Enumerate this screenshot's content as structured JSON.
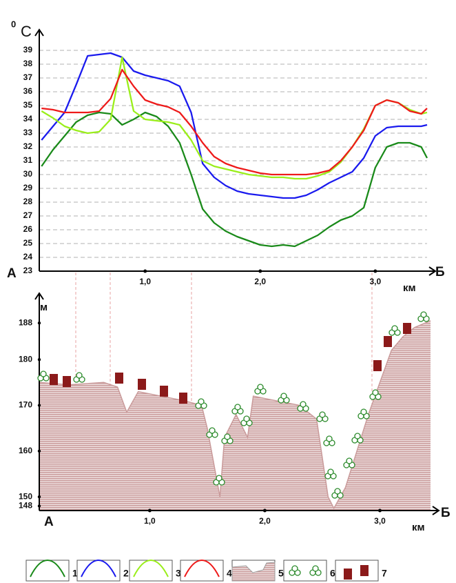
{
  "chart_data": [
    {
      "type": "line",
      "unit_sup": "0",
      "y_label": "С",
      "start_label": "А",
      "end_label": "Б",
      "x_label": "км",
      "x": [
        0.1,
        0.2,
        0.3,
        0.4,
        0.5,
        0.6,
        0.7,
        0.8,
        0.9,
        1.0,
        1.1,
        1.2,
        1.3,
        1.4,
        1.5,
        1.6,
        1.7,
        1.8,
        1.9,
        2.0,
        2.1,
        2.2,
        2.3,
        2.4,
        2.5,
        2.6,
        2.7,
        2.8,
        2.9,
        3.0,
        3.1,
        3.2,
        3.3,
        3.4,
        3.45
      ],
      "series": [
        {
          "name": "1",
          "color": "#1a8a1a",
          "values": [
            30.6,
            31.8,
            32.8,
            33.8,
            34.3,
            34.5,
            34.4,
            33.6,
            34.0,
            34.5,
            34.2,
            33.5,
            32.3,
            30.0,
            27.5,
            26.5,
            25.9,
            25.5,
            25.2,
            24.9,
            24.8,
            24.9,
            24.8,
            25.2,
            25.6,
            26.2,
            26.7,
            27.0,
            27.6,
            30.5,
            32.0,
            32.3,
            32.3,
            32.0,
            31.2
          ]
        },
        {
          "name": "2",
          "color": "#1a1aee",
          "values": [
            32.5,
            33.5,
            34.5,
            36.5,
            38.6,
            38.7,
            38.8,
            38.5,
            37.5,
            37.2,
            37.0,
            36.8,
            36.4,
            34.5,
            30.8,
            29.8,
            29.2,
            28.8,
            28.6,
            28.5,
            28.4,
            28.3,
            28.3,
            28.5,
            28.9,
            29.4,
            29.8,
            30.2,
            31.2,
            32.8,
            33.4,
            33.5,
            33.5,
            33.5,
            33.6
          ]
        },
        {
          "name": "3",
          "color": "#9aee1a",
          "values": [
            34.6,
            34.1,
            33.5,
            33.2,
            33.0,
            33.1,
            34.0,
            38.5,
            34.6,
            34.0,
            33.9,
            33.8,
            33.6,
            32.5,
            31.0,
            30.6,
            30.4,
            30.2,
            30.0,
            29.9,
            29.8,
            29.8,
            29.7,
            29.7,
            29.9,
            30.2,
            30.9,
            32.0,
            33.3,
            35.0,
            35.4,
            35.2,
            34.7,
            34.4,
            34.5
          ]
        },
        {
          "name": "4",
          "color": "#ee1a1a",
          "values": [
            34.8,
            34.7,
            34.5,
            34.5,
            34.5,
            34.6,
            35.5,
            37.6,
            36.4,
            35.4,
            35.1,
            34.9,
            34.5,
            33.5,
            32.3,
            31.3,
            30.8,
            30.5,
            30.3,
            30.1,
            30.0,
            30.0,
            30.0,
            30.0,
            30.1,
            30.3,
            31.0,
            32.0,
            33.2,
            35.0,
            35.4,
            35.2,
            34.6,
            34.4,
            34.8
          ]
        }
      ],
      "xlim": [
        0.08,
        3.45
      ],
      "xticks": [
        {
          "value": 1,
          "label": "1,0"
        },
        {
          "value": 2,
          "label": "2,0"
        },
        {
          "value": 3,
          "label": "3,0"
        }
      ],
      "ylim": [
        23,
        40
      ],
      "yticks": [
        23,
        24,
        25,
        26,
        27,
        28,
        29,
        30,
        31,
        32,
        33,
        34,
        35,
        36,
        37,
        38,
        39
      ],
      "grid": true
    },
    {
      "type": "area",
      "y_label": "м",
      "start_label": "А",
      "end_label": "Б",
      "x_label": "км",
      "color": "#c99a9a",
      "x": [
        0.04,
        0.3,
        0.6,
        0.72,
        0.8,
        0.9,
        1.1,
        1.3,
        1.45,
        1.5,
        1.61,
        1.65,
        1.75,
        1.85,
        1.9,
        2.1,
        2.3,
        2.45,
        2.55,
        2.6,
        2.7,
        2.8,
        2.9,
        3.0,
        3.1,
        3.2,
        3.3,
        3.44
      ],
      "values": [
        175,
        174.5,
        175,
        174,
        168.5,
        173,
        172,
        171,
        170,
        165,
        150,
        163,
        168,
        163,
        172,
        171,
        170,
        167,
        150,
        147.5,
        152,
        160,
        168,
        175,
        182,
        185,
        187,
        188.5
      ],
      "xlim": [
        0.04,
        3.44
      ],
      "xticks": [
        {
          "value": 1,
          "label": "1,0"
        },
        {
          "value": 2,
          "label": "2,0"
        },
        {
          "value": 3,
          "label": "3,0"
        }
      ],
      "ylim": [
        147,
        193
      ],
      "yticks": [
        148,
        150,
        160,
        170,
        180,
        188
      ]
    }
  ],
  "legend_extra": [
    "5",
    "6",
    "7"
  ]
}
